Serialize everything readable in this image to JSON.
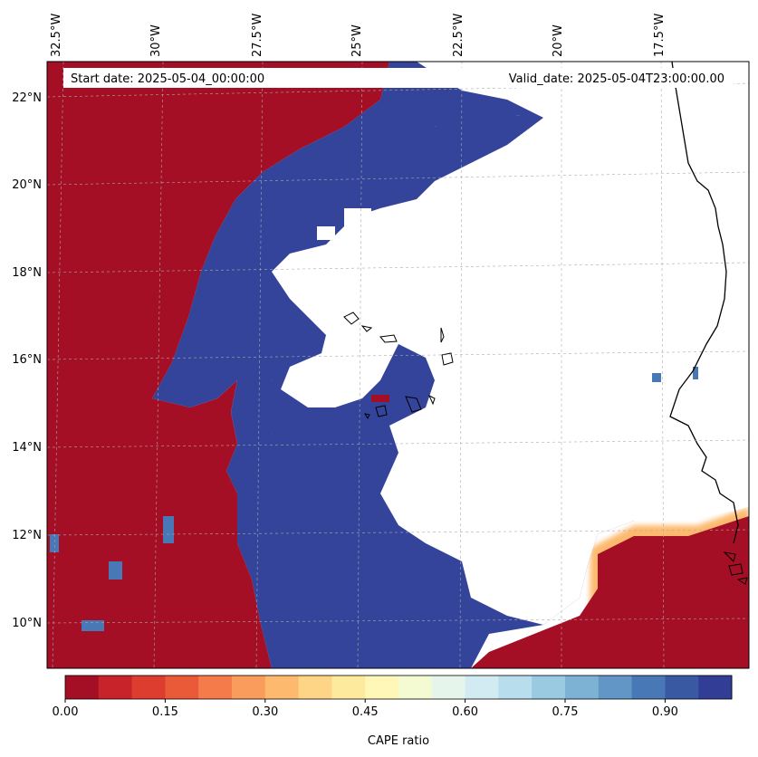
{
  "header": {
    "start_date": "Start date: 2025-05-04_00:00:00",
    "valid_date": "Valid_date: 2025-05-04T23:00:00.00"
  },
  "axes": {
    "lon_labels": [
      "32.5°W",
      "30°W",
      "27.5°W",
      "25°W",
      "22.5°W",
      "20°W",
      "17.5°W"
    ],
    "lat_labels": [
      "22°N",
      "20°N",
      "18°N",
      "16°N",
      "14°N",
      "12°N",
      "10°N"
    ]
  },
  "colorbar": {
    "label": "CAPE ratio",
    "ticks": [
      "0.00",
      "0.15",
      "0.30",
      "0.45",
      "0.60",
      "0.75",
      "0.90"
    ],
    "colors": [
      "#a50f26",
      "#c8222a",
      "#dc3d2e",
      "#ea5a39",
      "#f67b4b",
      "#fa9c5c",
      "#fdba6e",
      "#fed486",
      "#feea9c",
      "#fff7b8",
      "#f4fad2",
      "#e5f5ec",
      "#d2ebf3",
      "#b8ddec",
      "#9acae1",
      "#7db2d4",
      "#6196c6",
      "#4878b5",
      "#3a59a3",
      "#323e96"
    ]
  },
  "colors": {
    "low": "#a50f26",
    "high": "#35449b",
    "coast": "#000000"
  }
}
